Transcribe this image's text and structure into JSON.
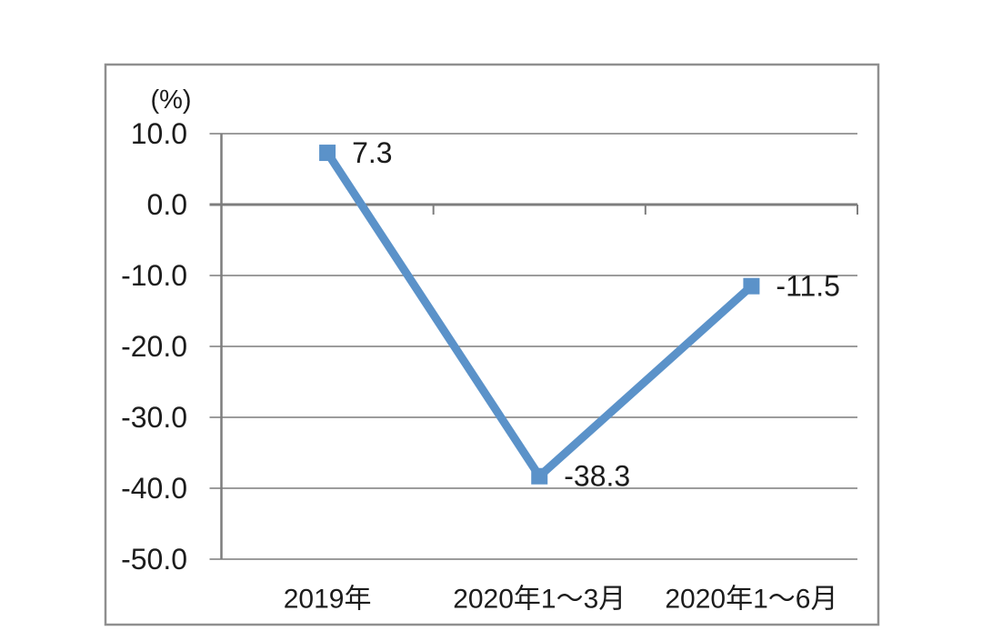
{
  "page": {
    "background_color": "#ffffff"
  },
  "chart_data": {
    "type": "line",
    "title": "",
    "unit_label": "(%)",
    "categories": [
      "2019年",
      "2020年1～3月",
      "2020年1～6月"
    ],
    "values": [
      7.3,
      -38.3,
      -11.5
    ],
    "data_labels": [
      "7.3",
      "-38.3",
      "-11.5"
    ],
    "y_ticks": [
      {
        "value": 10,
        "label": "10.0"
      },
      {
        "value": 0,
        "label": "0.0"
      },
      {
        "value": -10,
        "label": "-10.0"
      },
      {
        "value": -20,
        "label": "-20.0"
      },
      {
        "value": -30,
        "label": "-30.0"
      },
      {
        "value": -40,
        "label": "-40.0"
      },
      {
        "value": -50,
        "label": "-50.0"
      }
    ],
    "ylim": [
      -50,
      10
    ],
    "xlabel": "",
    "ylabel": "(%)",
    "grid": "horizontal",
    "legend": "none",
    "marker": "square",
    "colors": {
      "line": "#5b92c9",
      "marker": "#5b92c9",
      "gridline": "#9c9c9c",
      "axis": "#7d7d7d",
      "frame_border": "#8f8f8f",
      "text": "#1c1c1c",
      "background": "#ffffff"
    }
  }
}
